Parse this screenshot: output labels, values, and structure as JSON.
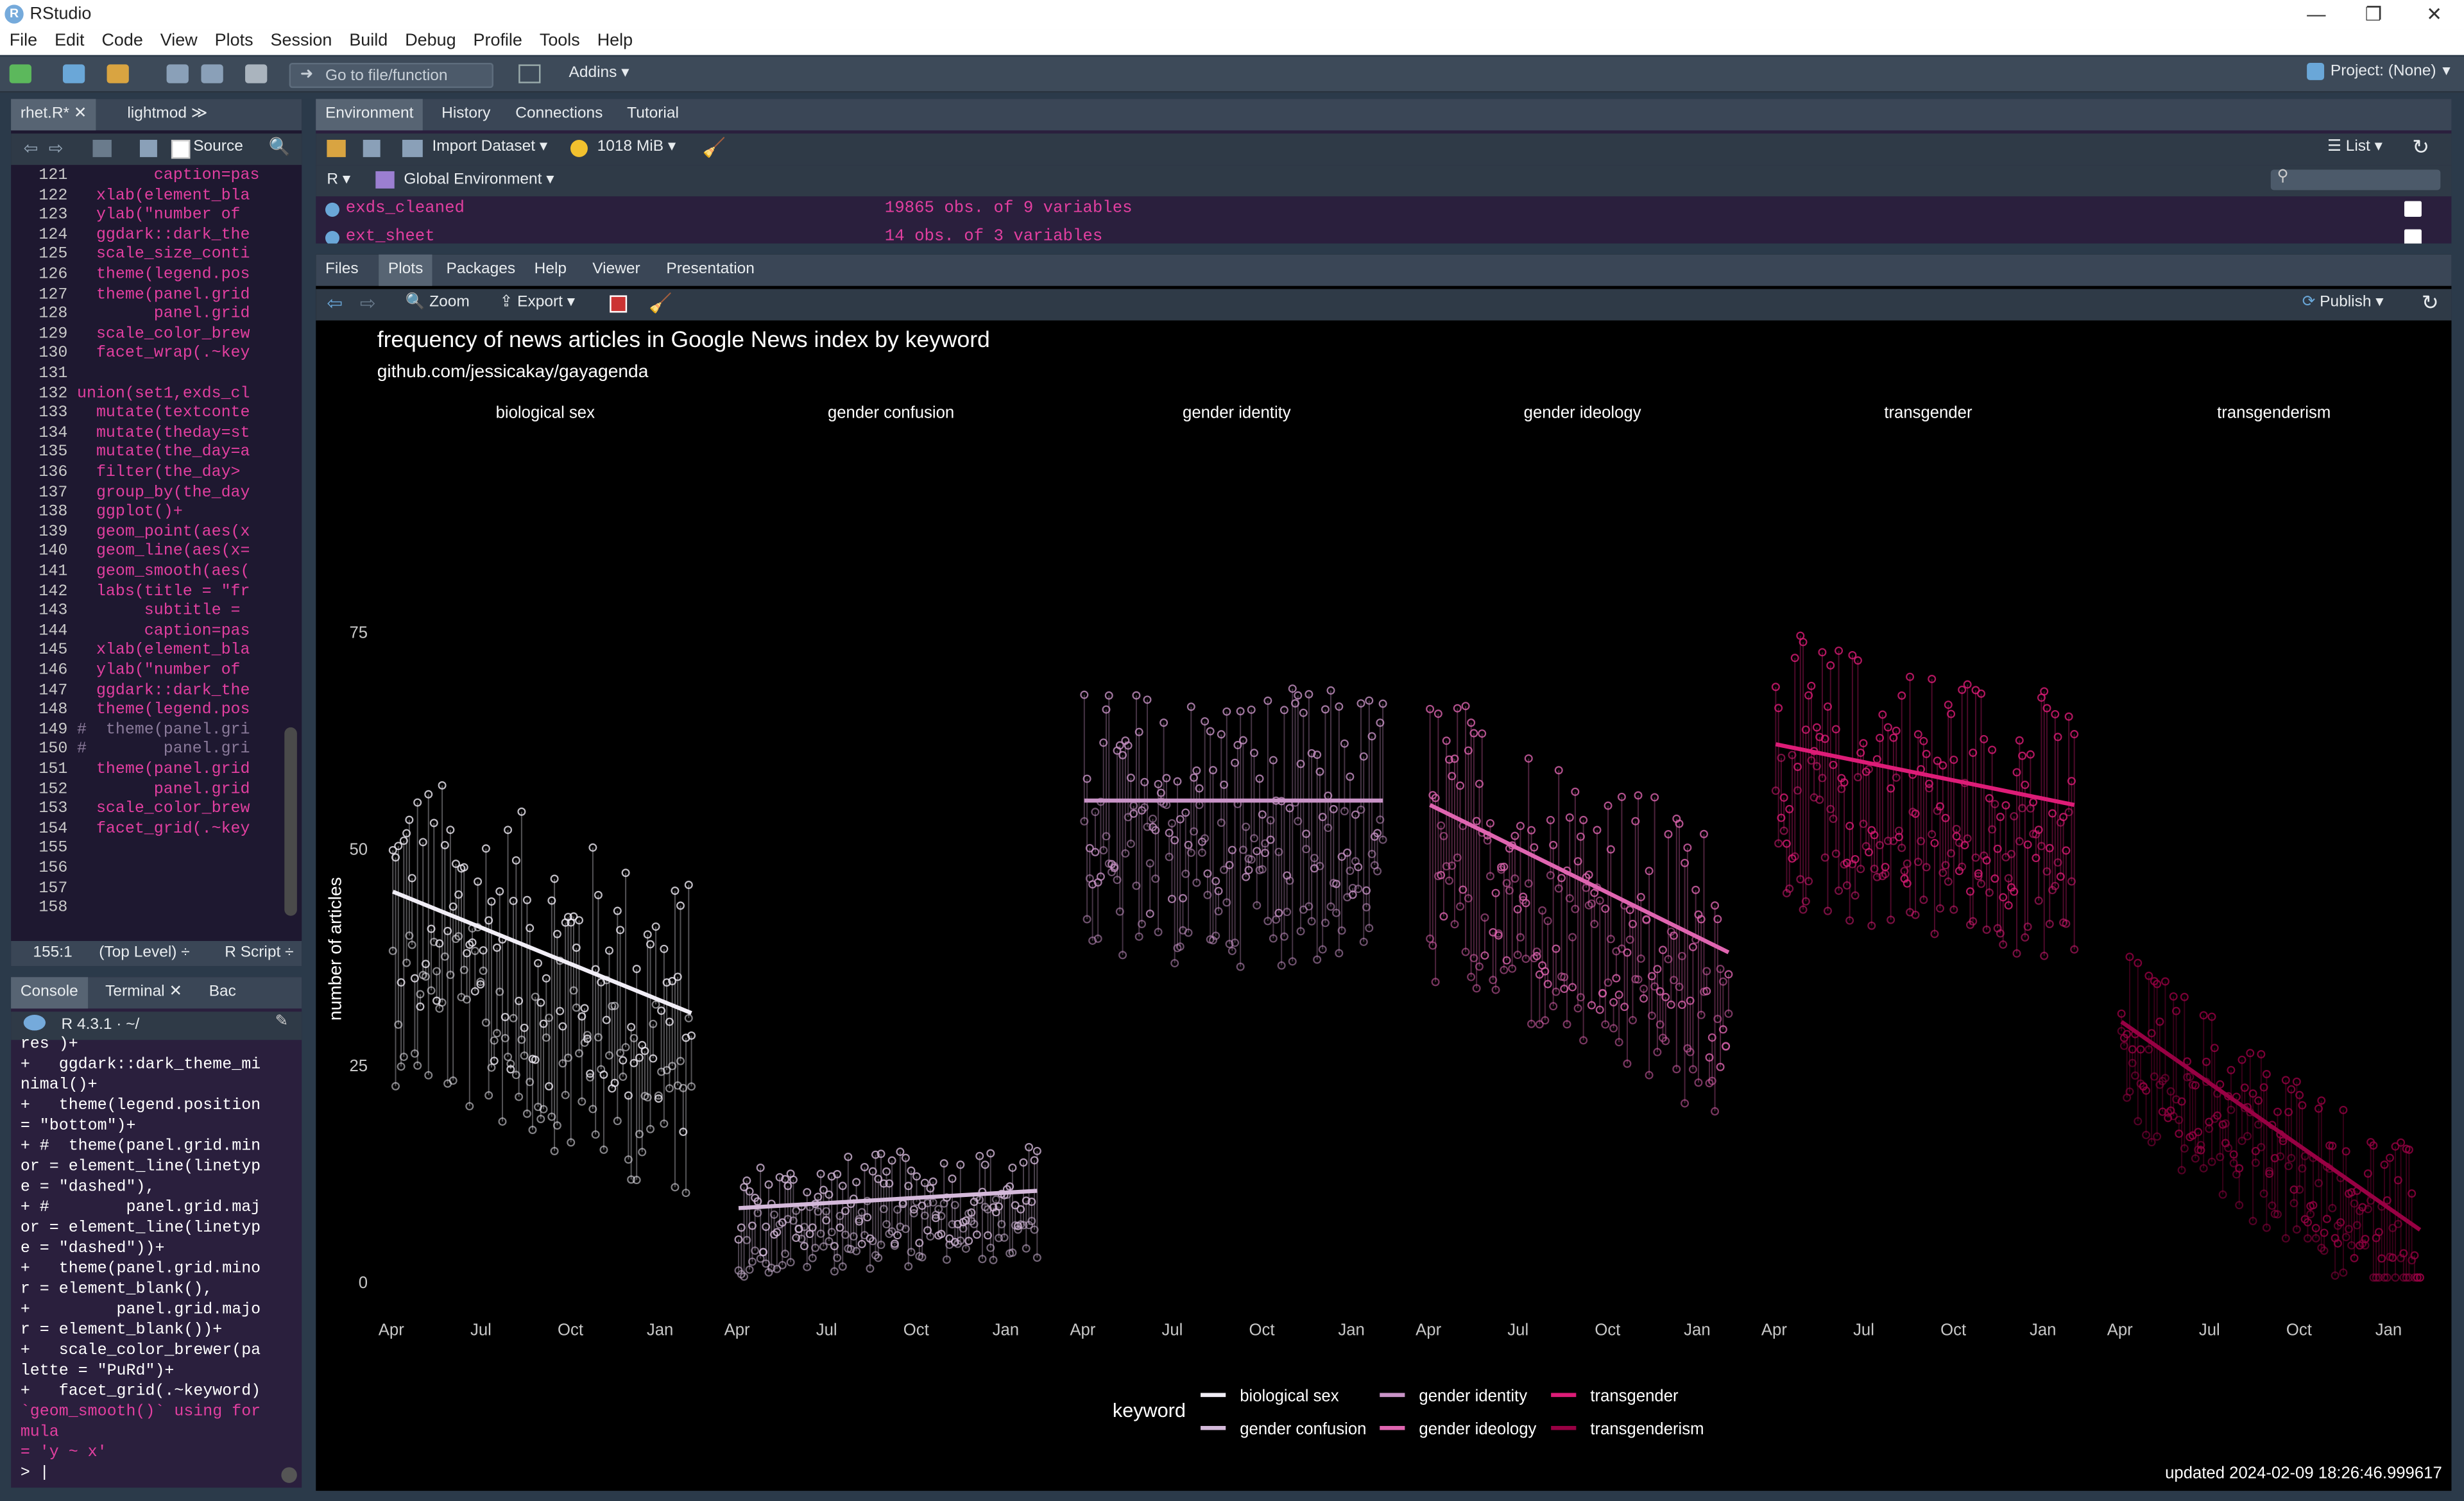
{
  "app": {
    "title": "RStudio",
    "logo": "R"
  },
  "window": {
    "minimize": "—",
    "restore": "❐",
    "close": "✕"
  },
  "menu": [
    "File",
    "Edit",
    "Code",
    "View",
    "Plots",
    "Session",
    "Build",
    "Debug",
    "Profile",
    "Tools",
    "Help"
  ],
  "toolbar": {
    "goto_placeholder": "Go to file/function",
    "addins": "Addins",
    "project": "Project: (None)"
  },
  "source": {
    "tabs": [
      "rhet.R*",
      "lightmod"
    ],
    "source_btn": "Source",
    "lines": [
      {
        "n": "121",
        "t": "        caption=pas"
      },
      {
        "n": "122",
        "t": "  xlab(element_bla"
      },
      {
        "n": "123",
        "t": "  ylab(\"number of"
      },
      {
        "n": "124",
        "t": "  ggdark::dark_the"
      },
      {
        "n": "125",
        "t": "  scale_size_conti"
      },
      {
        "n": "126",
        "t": "  theme(legend.pos"
      },
      {
        "n": "127",
        "t": "  theme(panel.grid"
      },
      {
        "n": "128",
        "t": "        panel.grid"
      },
      {
        "n": "129",
        "t": "  scale_color_brew"
      },
      {
        "n": "130",
        "t": "  facet_wrap(.~key"
      },
      {
        "n": "131",
        "t": ""
      },
      {
        "n": "132",
        "t": "union(set1,exds_cl"
      },
      {
        "n": "133",
        "t": "  mutate(textconte"
      },
      {
        "n": "134",
        "t": "  mutate(theday=st"
      },
      {
        "n": "135",
        "t": "  mutate(the_day=a"
      },
      {
        "n": "136",
        "t": "  filter(the_day>"
      },
      {
        "n": "137",
        "t": "  group_by(the_day"
      },
      {
        "n": "138",
        "t": "  ggplot()+"
      },
      {
        "n": "139",
        "t": "  geom_point(aes(x"
      },
      {
        "n": "140",
        "t": "  geom_line(aes(x="
      },
      {
        "n": "141",
        "t": "  geom_smooth(aes("
      },
      {
        "n": "142",
        "t": "  labs(title = \"fr"
      },
      {
        "n": "143",
        "t": "       subtitle ="
      },
      {
        "n": "144",
        "t": "       caption=pas"
      },
      {
        "n": "145",
        "t": "  xlab(element_bla"
      },
      {
        "n": "146",
        "t": "  ylab(\"number of"
      },
      {
        "n": "147",
        "t": "  ggdark::dark_the"
      },
      {
        "n": "148",
        "t": "  theme(legend.pos"
      },
      {
        "n": "149",
        "t": "#  theme(panel.gri"
      },
      {
        "n": "150",
        "t": "#        panel.gri"
      },
      {
        "n": "151",
        "t": "  theme(panel.grid"
      },
      {
        "n": "152",
        "t": "        panel.grid"
      },
      {
        "n": "153",
        "t": "  scale_color_brew"
      },
      {
        "n": "154",
        "t": "  facet_grid(.~key"
      },
      {
        "n": "155",
        "t": ""
      },
      {
        "n": "156",
        "t": ""
      },
      {
        "n": "157",
        "t": ""
      },
      {
        "n": "158",
        "t": ""
      }
    ],
    "status_pos": "155:1",
    "status_level": "(Top Level) ÷",
    "status_type": "R Script ÷"
  },
  "console": {
    "tabs": [
      "Console",
      "Terminal",
      "Bac"
    ],
    "r_version": "R 4.3.1 · ~/",
    "lines": [
      {
        "t": "res )+",
        "k": "p"
      },
      {
        "t": "+   ggdark::dark_theme_mi",
        "k": "p"
      },
      {
        "t": "nimal()+",
        "k": "p"
      },
      {
        "t": "+   theme(legend.position",
        "k": "p"
      },
      {
        "t": "= \"bottom\")+",
        "k": "p"
      },
      {
        "t": "+ #  theme(panel.grid.min",
        "k": "p"
      },
      {
        "t": "or = element_line(linetyp",
        "k": "p"
      },
      {
        "t": "e = \"dashed\"),",
        "k": "p"
      },
      {
        "t": "+ #        panel.grid.maj",
        "k": "p"
      },
      {
        "t": "or = element_line(linetyp",
        "k": "p"
      },
      {
        "t": "e = \"dashed\"))+",
        "k": "p"
      },
      {
        "t": "+   theme(panel.grid.mino",
        "k": "p"
      },
      {
        "t": "r = element_blank(),",
        "k": "p"
      },
      {
        "t": "+         panel.grid.majo",
        "k": "p"
      },
      {
        "t": "r = element_blank())+",
        "k": "p"
      },
      {
        "t": "+   scale_color_brewer(pa",
        "k": "p"
      },
      {
        "t": "lette = \"PuRd\")+",
        "k": "p"
      },
      {
        "t": "+   facet_grid(.~keyword)",
        "k": "p"
      },
      {
        "t": "`geom_smooth()` using for",
        "k": "m"
      },
      {
        "t": "mula",
        "k": "m"
      },
      {
        "t": "= 'y ~ x'",
        "k": "m"
      },
      {
        "t": "> |",
        "k": "p"
      }
    ]
  },
  "environment": {
    "tabs": [
      "Environment",
      "History",
      "Connections",
      "Tutorial"
    ],
    "import": "Import Dataset",
    "memory": "1018 MiB",
    "list_btn": "List",
    "lang": "R",
    "scope": "Global Environment",
    "rows": [
      {
        "name": "exds_cleaned",
        "value": "19865 obs. of 9 variables"
      },
      {
        "name": "ext_sheet",
        "value": "14 obs. of 3 variables"
      }
    ]
  },
  "files": {
    "tabs": [
      "Files",
      "Plots",
      "Packages",
      "Help",
      "Viewer",
      "Presentation"
    ],
    "zoom": "Zoom",
    "export": "Export",
    "publish": "Publish"
  },
  "chart_data": {
    "type": "scatter",
    "title": "frequency of news articles in Google News index by keyword",
    "subtitle": "github.com/jessicakay/gayagenda",
    "caption": "updated 2024-02-09 18:26:46.999617",
    "ylabel": "number of articles",
    "xlabel": "",
    "ylim": [
      0,
      90
    ],
    "yticks": [
      0,
      25,
      50,
      75
    ],
    "xticks": [
      "Apr",
      "Jul",
      "Oct",
      "Jan"
    ],
    "legend_title": "keyword",
    "legend_position": "bottom",
    "grid": false,
    "facets": [
      {
        "name": "biological sex",
        "color": "#f1eef6",
        "trend": [
          45,
          31
        ],
        "mean": 40,
        "spread": 14
      },
      {
        "name": "gender confusion",
        "color": "#d4b9da",
        "trend": [
          8.5,
          10.5
        ],
        "mean": 7,
        "spread": 5
      },
      {
        "name": "gender identity",
        "color": "#c994c7",
        "trend": [
          55.5,
          55.5
        ],
        "mean": 57,
        "spread": 12
      },
      {
        "name": "gender ideology",
        "color": "#df65b0",
        "trend": [
          55,
          38
        ],
        "mean": 45,
        "spread": 13
      },
      {
        "name": "transgender",
        "color": "#dd1c77",
        "trend": [
          62,
          55
        ],
        "mean": 58,
        "spread": 12
      },
      {
        "name": "transgenderism",
        "color": "#980043",
        "trend": [
          30,
          6
        ],
        "mean": 18,
        "spread": 8
      }
    ]
  }
}
